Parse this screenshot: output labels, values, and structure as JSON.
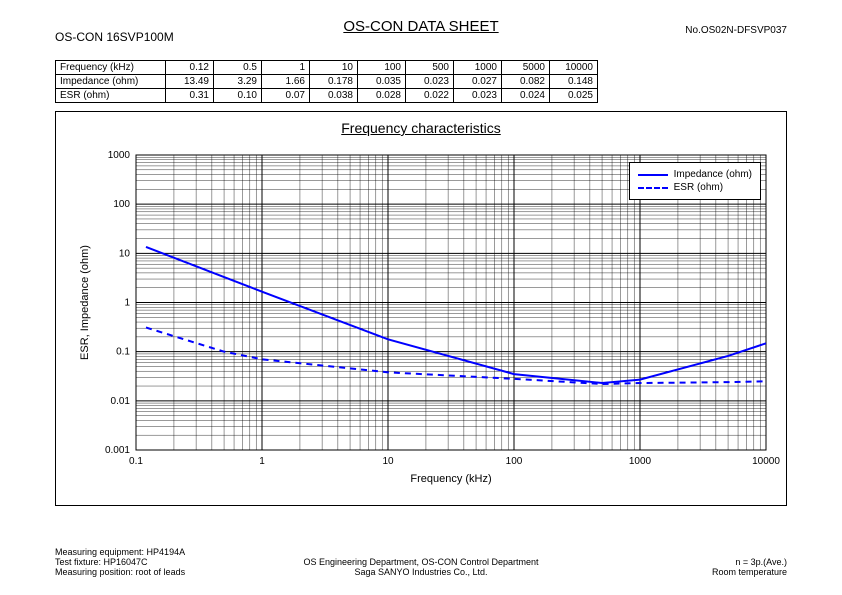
{
  "header": {
    "title": "OS-CON DATA SHEET",
    "part_number": "OS-CON 16SVP100M",
    "doc_number": "No.OS02N-DFSVP037"
  },
  "table": {
    "rows": [
      {
        "label": "Frequency (kHz)",
        "cells": [
          "0.12",
          "0.5",
          "1",
          "10",
          "100",
          "500",
          "1000",
          "5000",
          "10000"
        ]
      },
      {
        "label": "Impedance (ohm)",
        "cells": [
          "13.49",
          "3.29",
          "1.66",
          "0.178",
          "0.035",
          "0.023",
          "0.027",
          "0.082",
          "0.148"
        ]
      },
      {
        "label": "ESR (ohm)",
        "cells": [
          "0.31",
          "0.10",
          "0.07",
          "0.038",
          "0.028",
          "0.022",
          "0.023",
          "0.024",
          "0.025"
        ]
      }
    ]
  },
  "chart": {
    "title": "Frequency characteristics",
    "type": "line-loglog",
    "xlabel": "Frequency (kHz)",
    "ylabel": "ESR, Impedance (ohm)",
    "x_ticks": [
      0.1,
      1,
      10,
      100,
      1000,
      10000
    ],
    "x_tick_labels": [
      "0.1",
      "1",
      "10",
      "100",
      "1000",
      "10000"
    ],
    "y_ticks": [
      0.001,
      0.01,
      0.1,
      1,
      10,
      100,
      1000
    ],
    "y_tick_labels": [
      "0.001",
      "0.01",
      "0.1",
      "1",
      "10",
      "100",
      "1000"
    ],
    "x_range_log10": [
      -1,
      4
    ],
    "y_range_log10": [
      -3,
      3
    ],
    "grid_color": "#000000",
    "grid_width": 0.5,
    "background_color": "#ffffff",
    "label_fontsize": 11,
    "tick_fontsize": 10,
    "series": [
      {
        "name": "Impedance (ohm)",
        "color": "#0000ff",
        "dash": "none",
        "width": 2,
        "x": [
          0.12,
          0.5,
          1,
          10,
          100,
          500,
          1000,
          5000,
          10000
        ],
        "y": [
          13.49,
          3.29,
          1.66,
          0.178,
          0.035,
          0.023,
          0.027,
          0.082,
          0.148
        ]
      },
      {
        "name": "ESR (ohm)",
        "color": "#0000ff",
        "dash": "6,5",
        "width": 2,
        "x": [
          0.12,
          0.5,
          1,
          10,
          100,
          500,
          1000,
          5000,
          10000
        ],
        "y": [
          0.31,
          0.1,
          0.07,
          0.038,
          0.028,
          0.022,
          0.023,
          0.024,
          0.025
        ]
      }
    ],
    "legend": {
      "position": "top-right",
      "items": [
        "Impedance (ohm)",
        "ESR (ohm)"
      ]
    }
  },
  "footer": {
    "left": [
      "Measuring equipment: HP4194A",
      "Test fixture: HP16047C",
      "Measuring position: root of leads"
    ],
    "center": [
      "OS Engineering Department, OS-CON Control Department",
      "Saga SANYO Industries Co., Ltd."
    ],
    "right": [
      "n = 3p.(Ave.)",
      "Room temperature"
    ]
  }
}
